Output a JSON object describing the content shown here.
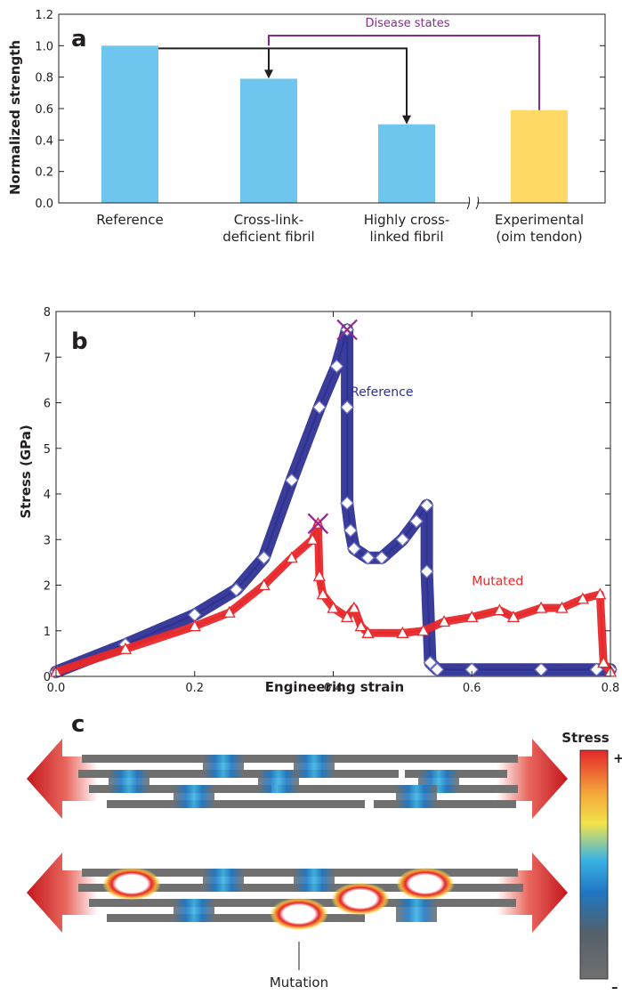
{
  "colors": {
    "bar_blue": "#6EC6EE",
    "bar_yellow": "#FFD966",
    "disease_purple": "#8B2A8E",
    "reference_blue": "#2E3192",
    "reference_marker": "#6A6FC4",
    "mutated_red": "#E8282B",
    "cross_mark": "#93278F",
    "fibril_gray": "#707070",
    "link_blue": "#1F77C4",
    "arrow_red": "#C4161C"
  },
  "chart_data": [
    {
      "panel": "a",
      "type": "bar",
      "ylabel": "Normalized strength",
      "ylim": [
        0.0,
        1.2
      ],
      "yticks": [
        "0.0",
        "0.2",
        "0.4",
        "0.6",
        "0.8",
        "1.0",
        "1.2"
      ],
      "categories": [
        [
          "Reference"
        ],
        [
          "Cross-link-",
          "deficient fibril"
        ],
        [
          "Highly cross-",
          "linked fibril"
        ],
        [
          "Experimental",
          "(oim tendon)"
        ]
      ],
      "values": [
        1.0,
        0.79,
        0.5,
        0.59
      ],
      "bar_colors": [
        "bar_blue",
        "bar_blue",
        "bar_blue",
        "bar_yellow"
      ],
      "annotation": "Disease states",
      "axis_break_between": [
        2,
        3
      ]
    },
    {
      "panel": "b",
      "type": "line",
      "xlabel": "Engineering strain",
      "ylabel": "Stress (GPa)",
      "xlim": [
        0.0,
        0.8
      ],
      "ylim": [
        0,
        8
      ],
      "xticks": [
        "0.0",
        "0.2",
        "0.4",
        "0.6",
        "0.8"
      ],
      "yticks": [
        "0",
        "1",
        "2",
        "3",
        "4",
        "5",
        "6",
        "7",
        "8"
      ],
      "series": [
        {
          "name": "Reference",
          "color": "reference_blue",
          "marker": "diamond",
          "x": [
            0.0,
            0.1,
            0.2,
            0.26,
            0.3,
            0.34,
            0.38,
            0.405,
            0.42,
            0.42,
            0.42,
            0.425,
            0.43,
            0.45,
            0.47,
            0.5,
            0.52,
            0.535,
            0.535,
            0.54,
            0.55,
            0.6,
            0.7,
            0.78,
            0.8
          ],
          "y": [
            0.1,
            0.7,
            1.35,
            1.9,
            2.6,
            4.3,
            5.9,
            6.8,
            7.6,
            5.9,
            3.8,
            3.2,
            2.8,
            2.6,
            2.6,
            3.0,
            3.4,
            3.75,
            2.3,
            0.3,
            0.15,
            0.15,
            0.15,
            0.15,
            0.15
          ]
        },
        {
          "name": "Mutated",
          "color": "mutated_red",
          "marker": "triangle",
          "x": [
            0.0,
            0.1,
            0.2,
            0.25,
            0.3,
            0.34,
            0.37,
            0.378,
            0.38,
            0.385,
            0.4,
            0.42,
            0.43,
            0.44,
            0.45,
            0.5,
            0.53,
            0.56,
            0.6,
            0.64,
            0.66,
            0.7,
            0.73,
            0.76,
            0.785,
            0.79,
            0.8
          ],
          "y": [
            0.1,
            0.6,
            1.1,
            1.4,
            2.0,
            2.6,
            3.0,
            3.35,
            2.2,
            1.8,
            1.5,
            1.3,
            1.5,
            1.1,
            0.95,
            0.95,
            1.0,
            1.2,
            1.3,
            1.45,
            1.3,
            1.5,
            1.5,
            1.7,
            1.8,
            0.3,
            0.1
          ]
        }
      ],
      "failure_points": [
        {
          "series": "Reference",
          "x": 0.42,
          "y": 7.6
        },
        {
          "series": "Mutated",
          "x": 0.378,
          "y": 3.35
        }
      ]
    }
  ],
  "panels": {
    "a_label": "a",
    "b_label": "b",
    "c_label": "c",
    "c_mutation_label": "Mutation",
    "c_colorbar_title": "Stress",
    "c_colorbar_plus": "+",
    "c_colorbar_minus": "–"
  }
}
